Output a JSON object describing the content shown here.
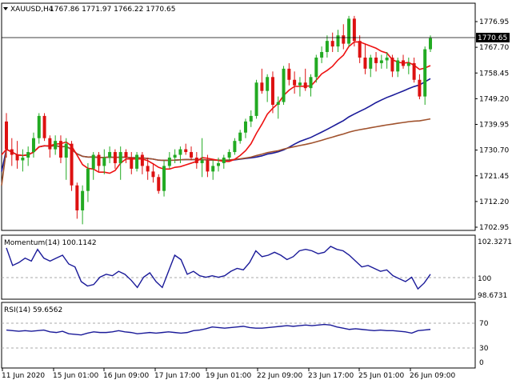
{
  "header": {
    "symbol": "XAUUSD,H4",
    "ohlc": "1767.86 1771.97 1766.22 1770.65",
    "arrow_icon": "triangle-down-icon"
  },
  "price_panel": {
    "price_labels": [
      "1776.95",
      "1767.70",
      "1758.45",
      "1749.20",
      "1739.95",
      "1730.70",
      "1721.45",
      "1712.20",
      "1702.95"
    ],
    "current_price": "1770.65"
  },
  "momentum_panel": {
    "title": "Momentum(14) 100.1142",
    "labels": [
      "102.3271",
      "100",
      "98.6731"
    ]
  },
  "rsi_panel": {
    "title": "RSI(14) 59.6562",
    "labels": [
      "70",
      "30",
      "0"
    ]
  },
  "time_axis": {
    "labels": [
      "11 Jun 2020",
      "15 Jun 01:00",
      "16 Jun 09:00",
      "17 Jun 17:00",
      "19 Jun 01:00",
      "22 Jun 09:00",
      "23 Jun 17:00",
      "25 Jun 01:00",
      "26 Jun 09:00"
    ]
  },
  "colors": {
    "bull": "#22aa22",
    "bear": "#dd1111",
    "ma_fast": "#ee1111",
    "ma_mid": "#1a1a99",
    "ma_slow": "#a0522d",
    "indicator": "#1a1a99"
  },
  "chart_data": {
    "type": "candlestick",
    "symbol": "XAUUSD",
    "timeframe": "H4",
    "ylim": [
      1702.95,
      1780
    ],
    "candles": [
      [
        1741,
        1744,
        1728,
        1731
      ],
      [
        1731,
        1735,
        1725,
        1729
      ],
      [
        1729,
        1734,
        1724,
        1727
      ],
      [
        1727,
        1731,
        1723,
        1728
      ],
      [
        1728,
        1732,
        1725,
        1730
      ],
      [
        1730,
        1737,
        1728,
        1735
      ],
      [
        1735,
        1744,
        1733,
        1743
      ],
      [
        1743,
        1744,
        1734,
        1735
      ],
      [
        1735,
        1736,
        1728,
        1731
      ],
      [
        1731,
        1736,
        1729,
        1734
      ],
      [
        1734,
        1736,
        1726,
        1728
      ],
      [
        1728,
        1735,
        1720,
        1733
      ],
      [
        1733,
        1734,
        1716,
        1718
      ],
      [
        1718,
        1719,
        1706,
        1709
      ],
      [
        1709,
        1718,
        1704,
        1716
      ],
      [
        1716,
        1726,
        1712,
        1724
      ],
      [
        1724,
        1730,
        1720,
        1729
      ],
      [
        1729,
        1730,
        1723,
        1725
      ],
      [
        1725,
        1731,
        1722,
        1728
      ],
      [
        1728,
        1732,
        1726,
        1730
      ],
      [
        1730,
        1731,
        1724,
        1726
      ],
      [
        1726,
        1732,
        1720,
        1730
      ],
      [
        1730,
        1731,
        1726,
        1728
      ],
      [
        1728,
        1730,
        1722,
        1724
      ],
      [
        1724,
        1730,
        1723,
        1729
      ],
      [
        1729,
        1730,
        1722,
        1725
      ],
      [
        1725,
        1728,
        1720,
        1723
      ],
      [
        1723,
        1726,
        1719,
        1721
      ],
      [
        1721,
        1722,
        1715,
        1716
      ],
      [
        1716,
        1727,
        1714,
        1725
      ],
      [
        1725,
        1730,
        1724,
        1728
      ],
      [
        1728,
        1731,
        1726,
        1729
      ],
      [
        1729,
        1732,
        1726,
        1731
      ],
      [
        1731,
        1733,
        1729,
        1730
      ],
      [
        1730,
        1732,
        1727,
        1728
      ],
      [
        1728,
        1730,
        1724,
        1726
      ],
      [
        1726,
        1735,
        1721,
        1727
      ],
      [
        1727,
        1729,
        1721,
        1723
      ],
      [
        1723,
        1727,
        1720,
        1725
      ],
      [
        1725,
        1728,
        1723,
        1726
      ],
      [
        1726,
        1729,
        1724,
        1728
      ],
      [
        1728,
        1731,
        1727,
        1730
      ],
      [
        1730,
        1735,
        1729,
        1734
      ],
      [
        1734,
        1738,
        1733,
        1737
      ],
      [
        1737,
        1742,
        1735,
        1741
      ],
      [
        1741,
        1745,
        1739,
        1743
      ],
      [
        1743,
        1756,
        1742,
        1755
      ],
      [
        1755,
        1760,
        1751,
        1752
      ],
      [
        1752,
        1758,
        1748,
        1757
      ],
      [
        1757,
        1759,
        1744,
        1747
      ],
      [
        1747,
        1750,
        1742,
        1748
      ],
      [
        1748,
        1761,
        1747,
        1760
      ],
      [
        1760,
        1762,
        1754,
        1756
      ],
      [
        1756,
        1759,
        1751,
        1754
      ],
      [
        1754,
        1757,
        1750,
        1755
      ],
      [
        1755,
        1760,
        1752,
        1753
      ],
      [
        1753,
        1758,
        1750,
        1757
      ],
      [
        1757,
        1765,
        1755,
        1764
      ],
      [
        1764,
        1768,
        1762,
        1766
      ],
      [
        1766,
        1772,
        1764,
        1770
      ],
      [
        1770,
        1773,
        1766,
        1768
      ],
      [
        1768,
        1774,
        1766,
        1772
      ],
      [
        1772,
        1776,
        1767,
        1769
      ],
      [
        1769,
        1779,
        1768,
        1778
      ],
      [
        1778,
        1779,
        1768,
        1770
      ],
      [
        1770,
        1772,
        1762,
        1764
      ],
      [
        1764,
        1769,
        1758,
        1760
      ],
      [
        1760,
        1765,
        1757,
        1764
      ],
      [
        1764,
        1766,
        1759,
        1762
      ],
      [
        1762,
        1765,
        1760,
        1763
      ],
      [
        1763,
        1766,
        1760,
        1764
      ],
      [
        1764,
        1765,
        1757,
        1759
      ],
      [
        1759,
        1764,
        1757,
        1763
      ],
      [
        1763,
        1765,
        1760,
        1761
      ],
      [
        1761,
        1764,
        1758,
        1762
      ],
      [
        1762,
        1764,
        1755,
        1756
      ],
      [
        1756,
        1758,
        1749,
        1750
      ],
      [
        1750,
        1768,
        1747,
        1767
      ],
      [
        1767,
        1772,
        1766,
        1771
      ]
    ],
    "momentum": [
      101.9,
      100.7,
      100.9,
      101.2,
      101.0,
      101.8,
      101.2,
      101.0,
      101.2,
      101.4,
      100.8,
      100.6,
      99.6,
      99.3,
      99.4,
      99.9,
      100.1,
      100.0,
      100.3,
      100.1,
      99.7,
      99.2,
      99.9,
      100.2,
      99.6,
      99.2,
      100.3,
      101.4,
      101.1,
      100.1,
      100.3,
      100.0,
      99.9,
      100.0,
      99.9,
      100.0,
      100.3,
      100.5,
      100.4,
      100.9,
      101.7,
      101.3,
      101.4,
      101.6,
      101.4,
      101.1,
      101.3,
      101.7,
      101.8,
      101.7,
      101.5,
      101.6,
      102.0,
      101.8,
      101.7,
      101.4,
      101.0,
      100.6,
      100.7,
      100.5,
      100.3,
      100.4,
      100.0,
      99.8,
      99.6,
      99.9,
      99.1,
      99.5,
      100.1
    ],
    "rsi": [
      59,
      58,
      57,
      58,
      57,
      58,
      59,
      56,
      55,
      57,
      53,
      52,
      51,
      54,
      56,
      55,
      55,
      56,
      58,
      56,
      55,
      53,
      54,
      55,
      54,
      55,
      56,
      55,
      54,
      55,
      58,
      59,
      61,
      64,
      63,
      62,
      63,
      64,
      65,
      63,
      62,
      62,
      63,
      64,
      65,
      66,
      65,
      66,
      67,
      66,
      67,
      68,
      67,
      64,
      62,
      60,
      61,
      60,
      59,
      58,
      59,
      58,
      58,
      57,
      56,
      54,
      58,
      59,
      60
    ],
    "indicator_levels": {
      "momentum": 100,
      "rsi": [
        70,
        30
      ]
    }
  }
}
